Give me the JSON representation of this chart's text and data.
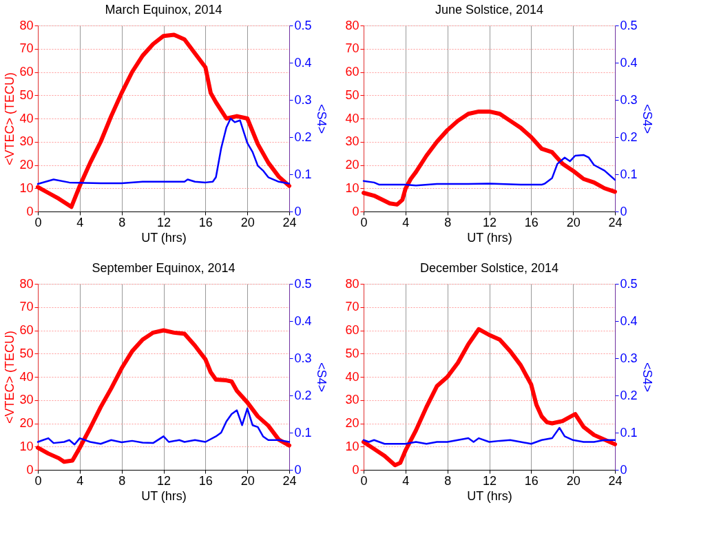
{
  "chart_data": [
    {
      "type": "line",
      "title": "March Equinox, 2014",
      "xlabel": "UT (hrs)",
      "ylabel": "<VTEC> (TECU)",
      "y2label": "<S4>",
      "xlim": [
        0,
        24
      ],
      "xticks": [
        0,
        4,
        8,
        12,
        16,
        20,
        24
      ],
      "ylim": [
        0,
        80
      ],
      "yticks": [
        0,
        10,
        20,
        30,
        40,
        50,
        60,
        70,
        80
      ],
      "y2lim": [
        0,
        0.5
      ],
      "y2ticks": [
        0,
        0.1,
        0.2,
        0.3,
        0.4,
        0.5
      ],
      "grid": true,
      "series": [
        {
          "color": "#ff0000",
          "x": [
            0,
            1,
            2,
            3.2,
            4,
            5,
            6,
            7,
            8,
            9,
            10,
            11,
            12,
            13,
            14,
            15,
            16,
            16.5,
            17,
            18,
            19,
            20,
            21,
            22,
            23,
            24
          ],
          "values": [
            10.5,
            8,
            5.5,
            2,
            11,
            21,
            30,
            41,
            51,
            60,
            67,
            72,
            75.5,
            76,
            74,
            68,
            62,
            51,
            47,
            40,
            41,
            40,
            29,
            21,
            15,
            11
          ]
        },
        {
          "color": "#0000ff",
          "axis": "y2",
          "x": [
            0,
            1.5,
            3,
            6,
            8,
            10,
            12,
            14,
            14.3,
            15,
            16,
            16.7,
            17,
            17.5,
            18,
            18.4,
            18.8,
            19.3,
            19.7,
            20,
            20.5,
            21,
            21.5,
            22,
            23,
            24
          ],
          "values": [
            0.074,
            0.086,
            0.078,
            0.076,
            0.076,
            0.08,
            0.08,
            0.08,
            0.086,
            0.08,
            0.078,
            0.08,
            0.092,
            0.17,
            0.226,
            0.25,
            0.24,
            0.245,
            0.21,
            0.184,
            0.16,
            0.123,
            0.11,
            0.092,
            0.08,
            0.075
          ]
        }
      ]
    },
    {
      "type": "line",
      "title": "June Solstice, 2014",
      "xlabel": "UT (hrs)",
      "y2label": "<S4>",
      "xlim": [
        0,
        24
      ],
      "xticks": [
        0,
        4,
        8,
        12,
        16,
        20,
        24
      ],
      "ylim": [
        0,
        80
      ],
      "yticks": [
        0,
        10,
        20,
        30,
        40,
        50,
        60,
        70,
        80
      ],
      "y2lim": [
        0,
        0.5
      ],
      "y2ticks": [
        0,
        0.1,
        0.2,
        0.3,
        0.4,
        0.5
      ],
      "grid": true,
      "series": [
        {
          "color": "#ff0000",
          "x": [
            0,
            1,
            2.5,
            3.2,
            3.7,
            4,
            4.5,
            5,
            6,
            7,
            8,
            9,
            10,
            11,
            12,
            13,
            14,
            15,
            16,
            17,
            18,
            19,
            20,
            21,
            22,
            23,
            24
          ],
          "values": [
            8,
            6.8,
            3.5,
            3,
            5,
            9.8,
            14,
            17,
            24,
            30,
            35,
            39,
            42,
            43,
            43,
            42,
            39,
            36,
            32,
            27,
            25.5,
            20.5,
            17.5,
            14,
            12.5,
            10,
            8.5
          ]
        },
        {
          "color": "#0000ff",
          "axis": "y2",
          "x": [
            0,
            1,
            1.5,
            4,
            5,
            7,
            10,
            12,
            15,
            17,
            17.3,
            18,
            18.5,
            19.2,
            19.7,
            20.2,
            21,
            21.5,
            22,
            23,
            24
          ],
          "values": [
            0.082,
            0.078,
            0.072,
            0.072,
            0.07,
            0.074,
            0.074,
            0.075,
            0.072,
            0.072,
            0.075,
            0.09,
            0.128,
            0.145,
            0.135,
            0.15,
            0.152,
            0.145,
            0.125,
            0.11,
            0.085
          ]
        }
      ]
    },
    {
      "type": "line",
      "title": "September Equinox, 2014",
      "xlabel": "UT (hrs)",
      "ylabel": "<VTEC> (TECU)",
      "y2label": "<S4>",
      "xlim": [
        0,
        24
      ],
      "xticks": [
        0,
        4,
        8,
        12,
        16,
        20,
        24
      ],
      "ylim": [
        0,
        80
      ],
      "yticks": [
        0,
        10,
        20,
        30,
        40,
        50,
        60,
        70,
        80
      ],
      "y2lim": [
        0,
        0.5
      ],
      "y2ticks": [
        0,
        0.1,
        0.2,
        0.3,
        0.4,
        0.5
      ],
      "grid": true,
      "series": [
        {
          "color": "#ff0000",
          "x": [
            0,
            1,
            2,
            2.5,
            3.3,
            4,
            5,
            6,
            7,
            8,
            9,
            10,
            11,
            12,
            13,
            14,
            15,
            16,
            16.5,
            17,
            18,
            18.5,
            19,
            20,
            21,
            22,
            23,
            24
          ],
          "values": [
            9.5,
            7,
            5,
            3.5,
            4,
            9.5,
            18,
            27,
            35,
            43.7,
            51,
            56,
            59,
            60,
            59,
            58.5,
            53.4,
            47.5,
            42,
            38.8,
            38.5,
            38,
            34,
            29,
            23,
            19,
            13,
            10.5
          ]
        },
        {
          "color": "#0000ff",
          "axis": "y2",
          "x": [
            0,
            0.5,
            1,
            1.5,
            2.5,
            3,
            3.5,
            4,
            5,
            6,
            7,
            8,
            9,
            10,
            11,
            12,
            12.5,
            13.5,
            14,
            15,
            16,
            17,
            17.5,
            18,
            18.5,
            19,
            19.5,
            20,
            20.5,
            21,
            21.5,
            22,
            23,
            24
          ],
          "values": [
            0.075,
            0.08,
            0.085,
            0.072,
            0.075,
            0.08,
            0.068,
            0.085,
            0.075,
            0.07,
            0.08,
            0.074,
            0.078,
            0.073,
            0.072,
            0.09,
            0.075,
            0.08,
            0.075,
            0.08,
            0.075,
            0.09,
            0.1,
            0.13,
            0.15,
            0.16,
            0.12,
            0.165,
            0.12,
            0.115,
            0.09,
            0.08,
            0.08,
            0.075
          ]
        }
      ]
    },
    {
      "type": "line",
      "title": "December Solstice, 2014",
      "xlabel": "UT (hrs)",
      "y2label": "<S4>",
      "xlim": [
        0,
        24
      ],
      "xticks": [
        0,
        4,
        8,
        12,
        16,
        20,
        24
      ],
      "ylim": [
        0,
        80
      ],
      "yticks": [
        0,
        10,
        20,
        30,
        40,
        50,
        60,
        70,
        80
      ],
      "y2lim": [
        0,
        0.5
      ],
      "y2ticks": [
        0,
        0.1,
        0.2,
        0.3,
        0.4,
        0.5
      ],
      "grid": true,
      "series": [
        {
          "color": "#ff0000",
          "x": [
            0,
            1,
            2,
            3,
            3.5,
            4,
            5,
            6,
            7,
            8,
            9,
            10,
            11,
            12,
            13,
            14,
            15,
            16,
            16.5,
            17,
            17.5,
            18,
            19,
            20.2,
            21,
            22,
            23,
            24
          ],
          "values": [
            12,
            9,
            6,
            2,
            3,
            8.3,
            17,
            27,
            36,
            40,
            46,
            54,
            60.5,
            58,
            56,
            51,
            45,
            36.7,
            28,
            23,
            20.5,
            20,
            21,
            24,
            18.5,
            15,
            13,
            11
          ]
        },
        {
          "color": "#0000ff",
          "axis": "y2",
          "x": [
            0,
            0.5,
            1,
            2,
            3,
            4,
            5,
            6,
            7,
            8,
            9,
            10,
            10.5,
            11,
            12,
            13,
            14,
            15,
            16,
            17,
            18,
            18.7,
            19.2,
            20,
            21,
            22,
            23,
            24
          ],
          "values": [
            0.08,
            0.075,
            0.08,
            0.07,
            0.07,
            0.07,
            0.075,
            0.07,
            0.075,
            0.075,
            0.08,
            0.085,
            0.075,
            0.085,
            0.075,
            0.078,
            0.08,
            0.075,
            0.07,
            0.08,
            0.085,
            0.113,
            0.09,
            0.08,
            0.075,
            0.075,
            0.08,
            0.08
          ]
        }
      ]
    }
  ]
}
